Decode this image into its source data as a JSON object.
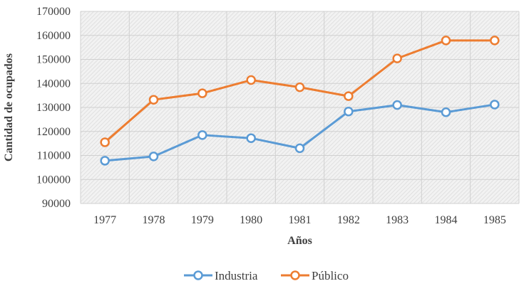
{
  "chart_data": {
    "type": "line",
    "title": "",
    "xlabel": "Años",
    "ylabel": "Cantidad de ocupados",
    "x": [
      "1977",
      "1978",
      "1979",
      "1980",
      "1981",
      "1982",
      "1983",
      "1984",
      "1985"
    ],
    "ylim": [
      90000,
      170000
    ],
    "yticks": [
      90000,
      100000,
      110000,
      120000,
      130000,
      140000,
      150000,
      160000,
      170000
    ],
    "ytick_labels": [
      "90000",
      "100000",
      "110000",
      "120000",
      "130000",
      "140000",
      "150000",
      "160000",
      "170000"
    ],
    "grid": true,
    "legend_position": "bottom",
    "series": [
      {
        "name": "Industria",
        "color": "#5b9bd5",
        "values": [
          107800,
          109600,
          118500,
          117200,
          113000,
          128300,
          131000,
          128000,
          131200
        ]
      },
      {
        "name": "Público",
        "color": "#ed7d31",
        "values": [
          115500,
          133200,
          135900,
          141400,
          138400,
          134700,
          150400,
          157900,
          157900
        ]
      }
    ]
  }
}
